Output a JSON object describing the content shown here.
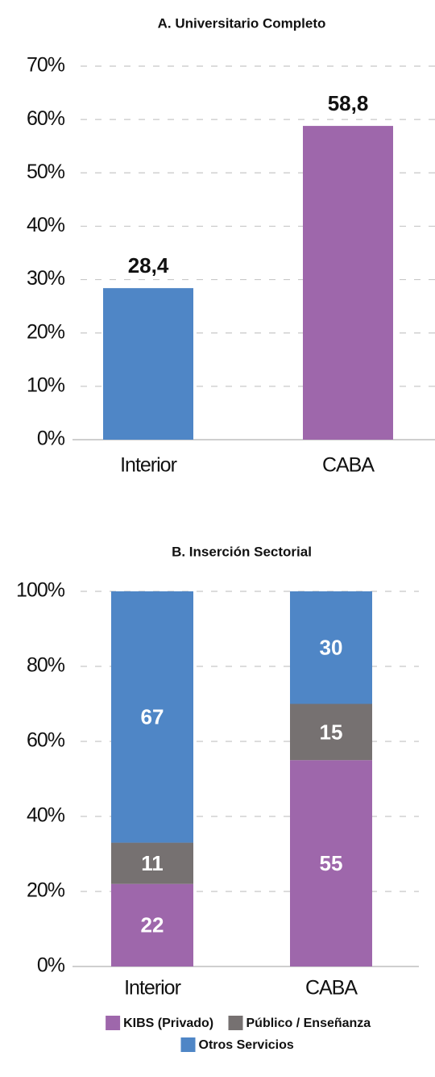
{
  "chart_data": [
    {
      "type": "bar",
      "title": "A. Universitario Completo",
      "categories": [
        "Interior",
        "CABA"
      ],
      "values": [
        28.4,
        58.8
      ],
      "value_labels": [
        "28,4",
        "58,8"
      ],
      "colors": [
        "#4f86c6",
        "#9e67ab"
      ],
      "ylim": [
        0,
        70
      ],
      "yticks": [
        {
          "value": 0,
          "label": "0%"
        },
        {
          "value": 10,
          "label": "10%"
        },
        {
          "value": 20,
          "label": "20%"
        },
        {
          "value": 30,
          "label": "30%"
        },
        {
          "value": 40,
          "label": "40%"
        },
        {
          "value": 50,
          "label": "50%"
        },
        {
          "value": 60,
          "label": "60%"
        },
        {
          "value": 70,
          "label": "70%"
        }
      ],
      "grid": true
    },
    {
      "type": "stacked_bar",
      "title": "B. Inserción Sectorial",
      "categories": [
        "Interior",
        "CABA"
      ],
      "series": [
        {
          "name": "KIBS (Privado)",
          "color": "#9e67ab",
          "values": [
            22,
            55
          ]
        },
        {
          "name": "Público / Enseñanza",
          "color": "#767171",
          "values": [
            11,
            15
          ]
        },
        {
          "name": "Otros Servicios",
          "color": "#4f86c6",
          "values": [
            67,
            30
          ]
        }
      ],
      "ylim": [
        0,
        100
      ],
      "yticks": [
        {
          "value": 0,
          "label": "0%"
        },
        {
          "value": 20,
          "label": "20%"
        },
        {
          "value": 40,
          "label": "40%"
        },
        {
          "value": 60,
          "label": "60%"
        },
        {
          "value": 80,
          "label": "80%"
        },
        {
          "value": 100,
          "label": "100%"
        }
      ],
      "grid": true
    }
  ]
}
